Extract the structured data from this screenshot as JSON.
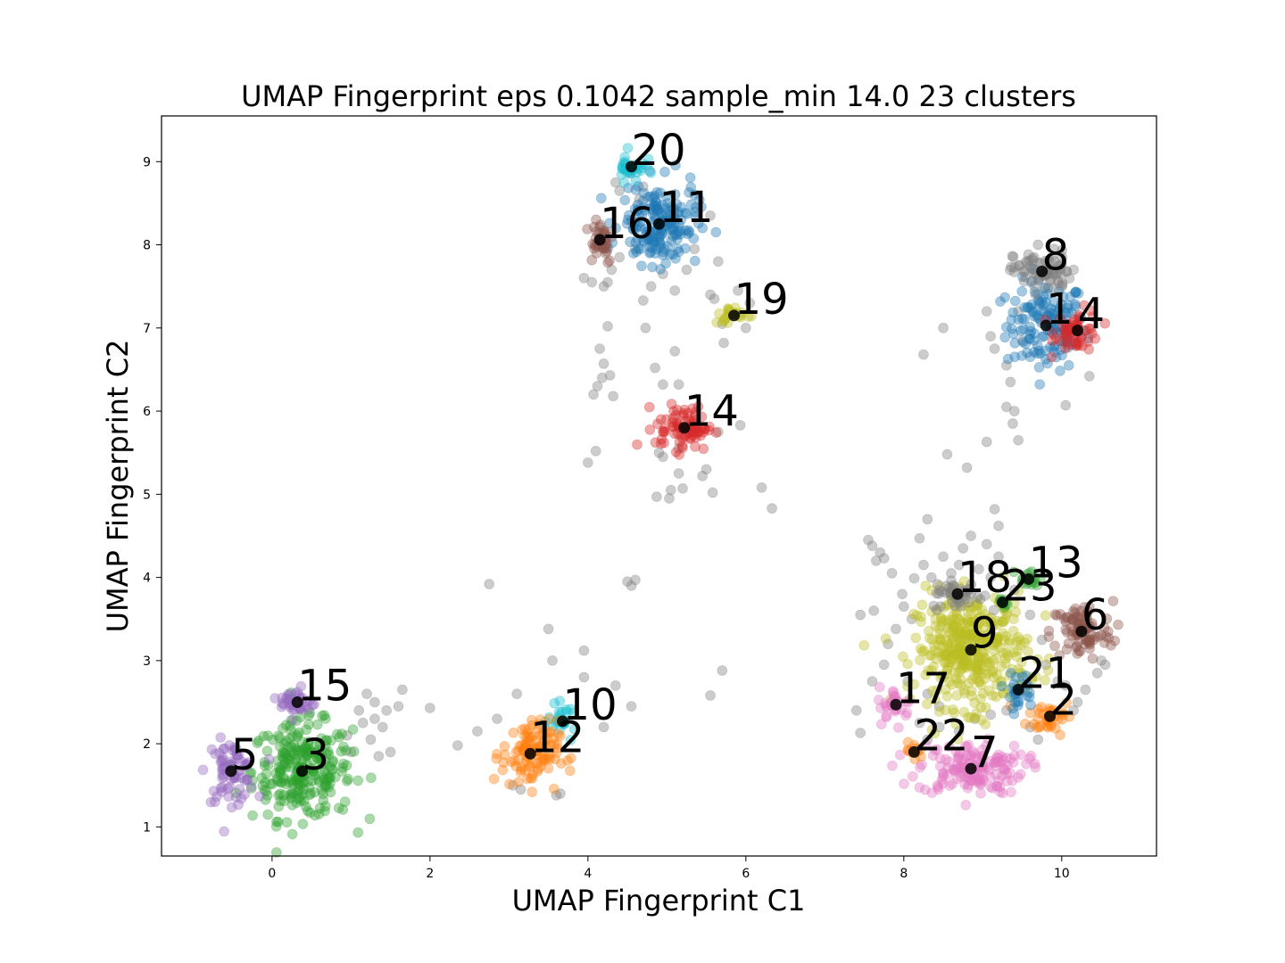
{
  "chart_data": {
    "type": "scatter",
    "title": "UMAP Fingerprint eps 0.1042 sample_min 14.0 23 clusters",
    "xlabel": "UMAP Fingerprint C1",
    "ylabel": "UMAP Fingerprint C2",
    "xlim": [
      -1.4,
      11.2
    ],
    "ylim": [
      0.65,
      9.55
    ],
    "xticks": [
      0,
      2,
      4,
      6,
      8,
      10
    ],
    "yticks": [
      1,
      2,
      3,
      4,
      5,
      6,
      7,
      8,
      9
    ],
    "grid": false,
    "legend": "none",
    "marker_alpha": 0.4,
    "clusters": [
      {
        "label": "1",
        "cx": 9.8,
        "cy": 7.03,
        "spread_x": 0.28,
        "spread_y": 0.3,
        "n": 140,
        "color": "#1f77b4"
      },
      {
        "label": "2",
        "cx": 9.85,
        "cy": 2.33,
        "spread_x": 0.16,
        "spread_y": 0.12,
        "n": 40,
        "color": "#ff7f0e"
      },
      {
        "label": "3",
        "cx": 0.38,
        "cy": 1.67,
        "spread_x": 0.35,
        "spread_y": 0.32,
        "n": 260,
        "color": "#2ca02c"
      },
      {
        "label": "4",
        "cx": 10.2,
        "cy": 6.97,
        "spread_x": 0.16,
        "spread_y": 0.14,
        "n": 55,
        "color": "#d62728"
      },
      {
        "label": "5",
        "cx": -0.52,
        "cy": 1.67,
        "spread_x": 0.17,
        "spread_y": 0.2,
        "n": 70,
        "color": "#9467bd"
      },
      {
        "label": "6",
        "cx": 10.25,
        "cy": 3.35,
        "spread_x": 0.22,
        "spread_y": 0.2,
        "n": 90,
        "color": "#8c564b"
      },
      {
        "label": "7",
        "cx": 8.85,
        "cy": 1.7,
        "spread_x": 0.38,
        "spread_y": 0.17,
        "n": 150,
        "color": "#e377c2"
      },
      {
        "label": "8",
        "cx": 9.75,
        "cy": 7.68,
        "spread_x": 0.2,
        "spread_y": 0.14,
        "n": 70,
        "color": "#7f7f7f"
      },
      {
        "label": "9",
        "cx": 8.85,
        "cy": 3.13,
        "spread_x": 0.4,
        "spread_y": 0.38,
        "n": 380,
        "color": "#bcbd22"
      },
      {
        "label": "10",
        "cx": 3.68,
        "cy": 2.27,
        "spread_x": 0.1,
        "spread_y": 0.1,
        "n": 25,
        "color": "#17becf"
      },
      {
        "label": "11",
        "cx": 4.9,
        "cy": 8.25,
        "spread_x": 0.27,
        "spread_y": 0.27,
        "n": 180,
        "color": "#1f77b4"
      },
      {
        "label": "12",
        "cx": 3.27,
        "cy": 1.88,
        "spread_x": 0.2,
        "spread_y": 0.22,
        "n": 110,
        "color": "#ff7f0e"
      },
      {
        "label": "13",
        "cx": 9.58,
        "cy": 3.98,
        "spread_x": 0.08,
        "spread_y": 0.06,
        "n": 18,
        "color": "#2ca02c"
      },
      {
        "label": "14",
        "cx": 5.22,
        "cy": 5.8,
        "spread_x": 0.2,
        "spread_y": 0.15,
        "n": 80,
        "color": "#d62728"
      },
      {
        "label": "15",
        "cx": 0.32,
        "cy": 2.5,
        "spread_x": 0.12,
        "spread_y": 0.1,
        "n": 35,
        "color": "#9467bd"
      },
      {
        "label": "16",
        "cx": 4.15,
        "cy": 8.06,
        "spread_x": 0.1,
        "spread_y": 0.16,
        "n": 40,
        "color": "#8c564b"
      },
      {
        "label": "17",
        "cx": 7.9,
        "cy": 2.47,
        "spread_x": 0.12,
        "spread_y": 0.12,
        "n": 30,
        "color": "#e377c2"
      },
      {
        "label": "18",
        "cx": 8.68,
        "cy": 3.8,
        "spread_x": 0.18,
        "spread_y": 0.1,
        "n": 45,
        "color": "#7f7f7f"
      },
      {
        "label": "19",
        "cx": 5.85,
        "cy": 7.15,
        "spread_x": 0.14,
        "spread_y": 0.06,
        "n": 25,
        "color": "#bcbd22"
      },
      {
        "label": "20",
        "cx": 4.55,
        "cy": 8.94,
        "spread_x": 0.1,
        "spread_y": 0.1,
        "n": 30,
        "color": "#17becf"
      },
      {
        "label": "21",
        "cx": 9.45,
        "cy": 2.65,
        "spread_x": 0.1,
        "spread_y": 0.12,
        "n": 30,
        "color": "#1f77b4"
      },
      {
        "label": "22",
        "cx": 8.13,
        "cy": 1.9,
        "spread_x": 0.06,
        "spread_y": 0.06,
        "n": 12,
        "color": "#ff7f0e"
      },
      {
        "label": "23",
        "cx": 9.25,
        "cy": 3.7,
        "spread_x": 0.05,
        "spread_y": 0.05,
        "n": 8,
        "color": "#2ca02c"
      }
    ],
    "noise_color": "#7f7f7f",
    "noise_points": [
      [
        1.1,
        2.4
      ],
      [
        1.3,
        2.3
      ],
      [
        1.45,
        2.4
      ],
      [
        1.4,
        2.2
      ],
      [
        1.6,
        2.45
      ],
      [
        1.65,
        2.65
      ],
      [
        1.25,
        2.05
      ],
      [
        1.5,
        1.9
      ],
      [
        1.35,
        1.85
      ],
      [
        1.15,
        2.25
      ],
      [
        2.0,
        2.43
      ],
      [
        2.35,
        1.98
      ],
      [
        0.95,
        2.1
      ],
      [
        1.0,
        1.9
      ],
      [
        1.2,
        2.6
      ],
      [
        1.3,
        2.5
      ],
      [
        2.75,
        3.92
      ],
      [
        2.6,
        2.15
      ],
      [
        2.85,
        2.3
      ],
      [
        3.1,
        2.6
      ],
      [
        3.05,
        1.5
      ],
      [
        3.15,
        1.45
      ],
      [
        3.5,
        3.38
      ],
      [
        3.55,
        3.0
      ],
      [
        3.95,
        3.12
      ],
      [
        3.6,
        1.38
      ],
      [
        3.65,
        1.4
      ],
      [
        3.95,
        2.8
      ],
      [
        4.35,
        2.7
      ],
      [
        4.2,
        2.2
      ],
      [
        4.5,
        3.95
      ],
      [
        4.55,
        3.9
      ],
      [
        4.6,
        3.97
      ],
      [
        4.55,
        2.45
      ],
      [
        5.55,
        2.58
      ],
      [
        5.7,
        2.88
      ],
      [
        3.95,
        7.6
      ],
      [
        4.05,
        7.55
      ],
      [
        4.2,
        7.5
      ],
      [
        4.3,
        7.7
      ],
      [
        4.7,
        7.33
      ],
      [
        4.8,
        7.5
      ],
      [
        4.95,
        7.65
      ],
      [
        5.1,
        7.45
      ],
      [
        5.55,
        7.4
      ],
      [
        5.6,
        7.35
      ],
      [
        5.65,
        7.8
      ],
      [
        4.25,
        7.02
      ],
      [
        4.15,
        6.75
      ],
      [
        4.2,
        6.57
      ],
      [
        4.28,
        6.43
      ],
      [
        4.18,
        6.4
      ],
      [
        4.12,
        6.3
      ],
      [
        4.07,
        6.2
      ],
      [
        4.32,
        6.18
      ],
      [
        4.73,
        7.0
      ],
      [
        4.85,
        6.52
      ],
      [
        4.95,
        6.32
      ],
      [
        5.1,
        6.72
      ],
      [
        5.15,
        6.32
      ],
      [
        4.9,
        5.5
      ],
      [
        4.95,
        5.45
      ],
      [
        5.15,
        5.25
      ],
      [
        5.15,
        5.55
      ],
      [
        5.5,
        5.3
      ],
      [
        5.45,
        5.22
      ],
      [
        5.65,
        5.75
      ],
      [
        5.05,
        5.05
      ],
      [
        5.2,
        5.07
      ],
      [
        4.87,
        4.97
      ],
      [
        5.03,
        4.95
      ],
      [
        5.58,
        5.02
      ],
      [
        6.2,
        5.08
      ],
      [
        6.33,
        4.83
      ],
      [
        5.93,
        5.83
      ],
      [
        4.1,
        5.52
      ],
      [
        4.0,
        5.38
      ],
      [
        5.72,
        6.82
      ],
      [
        5.7,
        7.05
      ],
      [
        6.0,
        7.0
      ],
      [
        6.05,
        7.3
      ],
      [
        5.9,
        7.45
      ],
      [
        4.4,
        8.65
      ],
      [
        4.35,
        8.75
      ],
      [
        4.7,
        8.7
      ],
      [
        4.65,
        8.55
      ],
      [
        5.55,
        8.35
      ],
      [
        5.35,
        7.95
      ],
      [
        5.25,
        7.7
      ],
      [
        4.25,
        7.55
      ],
      [
        4.4,
        7.85
      ],
      [
        4.6,
        7.95
      ],
      [
        8.5,
        7.0
      ],
      [
        9.05,
        7.2
      ],
      [
        9.1,
        6.9
      ],
      [
        9.15,
        6.75
      ],
      [
        9.3,
        6.55
      ],
      [
        9.35,
        6.35
      ],
      [
        9.3,
        6.05
      ],
      [
        9.4,
        6.0
      ],
      [
        9.38,
        5.85
      ],
      [
        9.45,
        5.65
      ],
      [
        9.5,
        6.85
      ],
      [
        9.45,
        7.2
      ],
      [
        9.65,
        7.85
      ],
      [
        9.7,
        8.0
      ],
      [
        9.95,
        7.75
      ],
      [
        10.0,
        7.5
      ],
      [
        10.15,
        7.7
      ],
      [
        10.35,
        6.42
      ],
      [
        10.05,
        6.07
      ],
      [
        8.25,
        6.68
      ],
      [
        8.55,
        5.48
      ],
      [
        8.8,
        5.32
      ],
      [
        9.05,
        5.63
      ],
      [
        9.15,
        4.82
      ],
      [
        9.2,
        4.62
      ],
      [
        8.75,
        4.35
      ],
      [
        8.85,
        4.5
      ],
      [
        8.5,
        4.25
      ],
      [
        8.3,
        4.7
      ],
      [
        7.6,
        4.38
      ],
      [
        7.55,
        4.45
      ],
      [
        7.7,
        4.3
      ],
      [
        7.75,
        4.23
      ],
      [
        7.85,
        4.05
      ],
      [
        7.98,
        3.8
      ],
      [
        8.2,
        4.47
      ],
      [
        7.65,
        4.2
      ],
      [
        7.45,
        3.55
      ],
      [
        7.62,
        3.6
      ],
      [
        7.4,
        2.4
      ],
      [
        7.45,
        2.13
      ],
      [
        7.6,
        2.75
      ],
      [
        7.75,
        2.95
      ],
      [
        7.8,
        3.2
      ],
      [
        7.9,
        3.38
      ],
      [
        8.0,
        3.65
      ],
      [
        8.1,
        3.5
      ],
      [
        8.25,
        4.15
      ],
      [
        8.35,
        4.0
      ],
      [
        8.6,
        4.05
      ],
      [
        8.7,
        4.15
      ],
      [
        8.95,
        4.1
      ],
      [
        9.1,
        4.0
      ],
      [
        9.4,
        3.85
      ],
      [
        9.6,
        3.55
      ],
      [
        9.75,
        3.25
      ],
      [
        9.8,
        2.95
      ],
      [
        9.95,
        2.75
      ],
      [
        10.05,
        2.7
      ],
      [
        10.3,
        2.65
      ],
      [
        10.45,
        2.85
      ],
      [
        10.5,
        3.0
      ],
      [
        10.55,
        2.95
      ],
      [
        9.6,
        2.2
      ],
      [
        9.7,
        2.05
      ],
      [
        10.15,
        2.4
      ],
      [
        10.2,
        2.5
      ],
      [
        8.3,
        2.05
      ],
      [
        8.2,
        2.25
      ],
      [
        8.45,
        2.2
      ],
      [
        8.7,
        2.15
      ],
      [
        8.9,
        2.3
      ],
      [
        9.1,
        2.35
      ],
      [
        9.3,
        2.4
      ],
      [
        8.05,
        2.75
      ],
      [
        8.3,
        2.6
      ],
      [
        8.45,
        2.45
      ],
      [
        9.2,
        4.25
      ],
      [
        9.05,
        4.4
      ]
    ]
  }
}
